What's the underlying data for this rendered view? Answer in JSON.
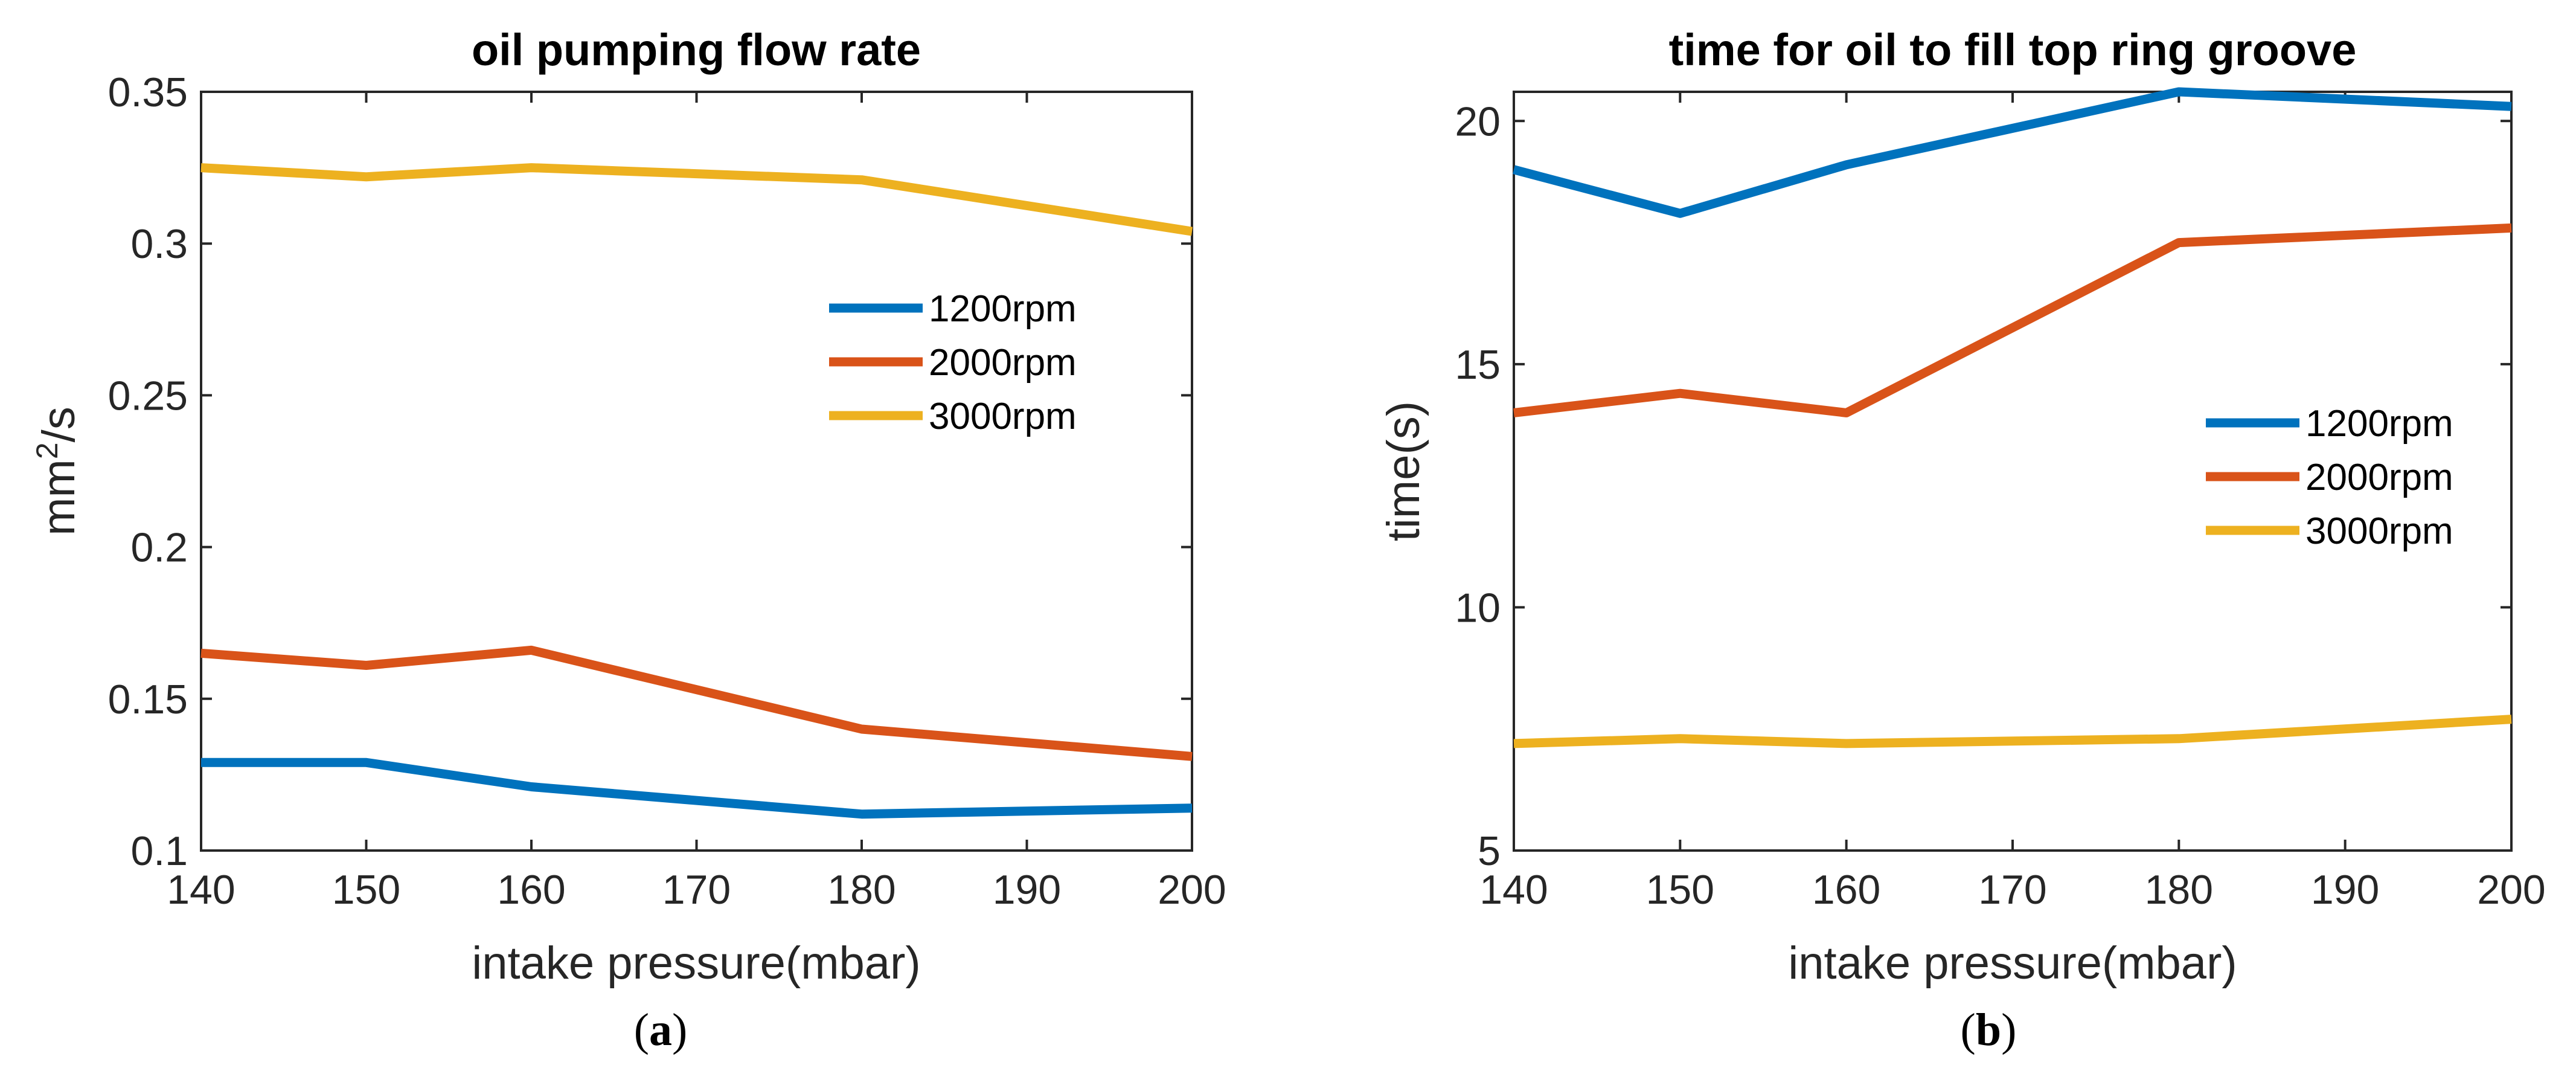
{
  "chart_data": [
    {
      "type": "line",
      "title": "oil pumping flow rate",
      "xlabel": "intake pressure(mbar)",
      "ylabel_base": "mm",
      "ylabel_sup": "2",
      "ylabel_tail": "/s",
      "caption_open": "(",
      "caption_letter": "a",
      "caption_close": ")",
      "xlim": [
        140,
        200
      ],
      "ylim": [
        0.1,
        0.35
      ],
      "xticks": [
        140,
        150,
        160,
        170,
        180,
        190,
        200
      ],
      "xtick_labels": [
        "140",
        "150",
        "160",
        "170",
        "180",
        "190",
        "200"
      ],
      "yticks": [
        0.1,
        0.15,
        0.2,
        0.25,
        0.3,
        0.35
      ],
      "ytick_labels": [
        "0.1",
        "0.15",
        "0.2",
        "0.25",
        "0.3",
        "0.35"
      ],
      "x": [
        140,
        150,
        160,
        180,
        200
      ],
      "legend_position": "center-right",
      "series": [
        {
          "name": "1200rpm",
          "color": "#0072BD",
          "values": [
            0.129,
            0.129,
            0.121,
            0.112,
            0.114
          ]
        },
        {
          "name": "2000rpm",
          "color": "#D95319",
          "values": [
            0.165,
            0.161,
            0.166,
            0.14,
            0.131
          ]
        },
        {
          "name": "3000rpm",
          "color": "#EDB120",
          "values": [
            0.325,
            0.322,
            0.325,
            0.321,
            0.304
          ]
        }
      ]
    },
    {
      "type": "line",
      "title": "time for oil to fill top ring groove",
      "xlabel": "intake pressure(mbar)",
      "ylabel": "time(s)",
      "caption_open": "(",
      "caption_letter": "b",
      "caption_close": ")",
      "xlim": [
        140,
        200
      ],
      "ylim": [
        5,
        20.6
      ],
      "xticks": [
        140,
        150,
        160,
        170,
        180,
        190,
        200
      ],
      "xtick_labels": [
        "140",
        "150",
        "160",
        "170",
        "180",
        "190",
        "200"
      ],
      "yticks": [
        5,
        10,
        15,
        20
      ],
      "ytick_labels": [
        "5",
        "10",
        "15",
        "20"
      ],
      "x": [
        140,
        150,
        160,
        180,
        200
      ],
      "legend_position": "center-right",
      "series": [
        {
          "name": "1200rpm",
          "color": "#0072BD",
          "values": [
            19.0,
            18.1,
            19.1,
            20.6,
            20.3
          ]
        },
        {
          "name": "2000rpm",
          "color": "#D95319",
          "values": [
            14.0,
            14.4,
            14.0,
            17.5,
            17.8
          ]
        },
        {
          "name": "3000rpm",
          "color": "#EDB120",
          "values": [
            7.2,
            7.3,
            7.2,
            7.3,
            7.7
          ]
        }
      ]
    }
  ]
}
